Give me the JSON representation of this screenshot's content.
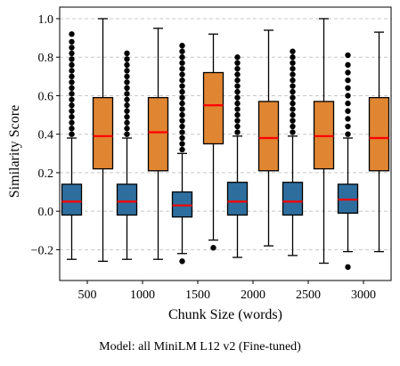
{
  "caption": "Model: all MiniLM L12 v2 (Fine-tuned)",
  "chart_data": {
    "type": "boxplot",
    "title": "",
    "xlabel": "Chunk Size (words)",
    "ylabel": "Similarity Score",
    "categories": [
      "500",
      "1000",
      "1500",
      "2000",
      "2500",
      "3000"
    ],
    "ylim": [
      -0.36,
      1.06
    ],
    "yticks": [
      -0.2,
      0.0,
      0.2,
      0.4,
      0.6,
      0.8,
      1.0
    ],
    "grid": "horizontal-dashed",
    "colors": {
      "series_a": "#2e6e9e",
      "series_b": "#e08531",
      "median": "#ff0000",
      "grid": "#c8c8c8"
    },
    "series": [
      {
        "color": "#2e6e9e",
        "boxes": [
          {
            "whislo": -0.25,
            "q1": -0.02,
            "med": 0.05,
            "q3": 0.14,
            "whishi": 0.38,
            "outliers": [
              0.4,
              0.43,
              0.46,
              0.49,
              0.52,
              0.55,
              0.58,
              0.61,
              0.64,
              0.67,
              0.7,
              0.73,
              0.76,
              0.79,
              0.82,
              0.85,
              0.88,
              0.92
            ]
          },
          {
            "whislo": -0.25,
            "q1": -0.02,
            "med": 0.05,
            "q3": 0.14,
            "whishi": 0.38,
            "outliers": [
              0.4,
              0.43,
              0.46,
              0.49,
              0.52,
              0.55,
              0.58,
              0.61,
              0.64,
              0.67,
              0.7,
              0.73,
              0.76,
              0.79,
              0.82
            ]
          },
          {
            "whislo": -0.22,
            "q1": -0.03,
            "med": 0.03,
            "q3": 0.1,
            "whishi": 0.3,
            "outliers": [
              0.32,
              0.35,
              0.38,
              0.41,
              0.44,
              0.47,
              0.5,
              0.53,
              0.56,
              0.59,
              0.62,
              0.65,
              0.68,
              0.71,
              0.74,
              0.77,
              0.8,
              0.83,
              0.86,
              -0.26
            ]
          },
          {
            "whislo": -0.24,
            "q1": -0.02,
            "med": 0.05,
            "q3": 0.15,
            "whishi": 0.39,
            "outliers": [
              0.41,
              0.44,
              0.47,
              0.5,
              0.53,
              0.56,
              0.59,
              0.62,
              0.65,
              0.68,
              0.71,
              0.74,
              0.77,
              0.8
            ]
          },
          {
            "whislo": -0.23,
            "q1": -0.02,
            "med": 0.05,
            "q3": 0.15,
            "whishi": 0.39,
            "outliers": [
              0.41,
              0.44,
              0.47,
              0.5,
              0.53,
              0.56,
              0.59,
              0.62,
              0.65,
              0.68,
              0.71,
              0.74,
              0.77,
              0.8,
              0.83
            ]
          },
          {
            "whislo": -0.21,
            "q1": -0.01,
            "med": 0.06,
            "q3": 0.14,
            "whishi": 0.38,
            "outliers": [
              0.4,
              0.44,
              0.48,
              0.52,
              0.56,
              0.6,
              0.64,
              0.68,
              0.72,
              0.76,
              0.81,
              -0.29
            ]
          }
        ]
      },
      {
        "color": "#e08531",
        "boxes": [
          {
            "whislo": -0.26,
            "q1": 0.22,
            "med": 0.39,
            "q3": 0.59,
            "whishi": 1.0,
            "outliers": []
          },
          {
            "whislo": -0.25,
            "q1": 0.21,
            "med": 0.41,
            "q3": 0.59,
            "whishi": 0.95,
            "outliers": []
          },
          {
            "whislo": -0.15,
            "q1": 0.35,
            "med": 0.55,
            "q3": 0.72,
            "whishi": 0.92,
            "outliers": [
              -0.19
            ]
          },
          {
            "whislo": -0.18,
            "q1": 0.21,
            "med": 0.38,
            "q3": 0.57,
            "whishi": 0.94,
            "outliers": []
          },
          {
            "whislo": -0.27,
            "q1": 0.22,
            "med": 0.39,
            "q3": 0.57,
            "whishi": 1.0,
            "outliers": []
          },
          {
            "whislo": -0.21,
            "q1": 0.21,
            "med": 0.38,
            "q3": 0.59,
            "whishi": 0.93,
            "outliers": []
          }
        ]
      }
    ]
  }
}
